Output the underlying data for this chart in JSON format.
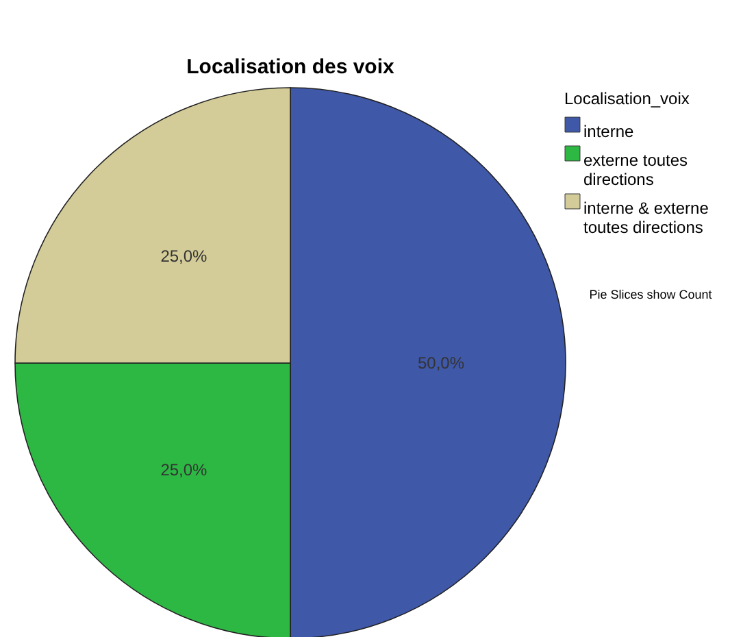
{
  "chart_data": {
    "type": "pie",
    "title": "Localisation des voix",
    "legend_title": "Localisation_voix",
    "legend": "top right",
    "categories": [
      "interne",
      "externe toutes directions",
      "interne & externe toutes directions"
    ],
    "values": [
      50,
      25,
      25
    ],
    "colors": [
      "#3f58a8",
      "#2db844",
      "#d3cc98"
    ],
    "value_labels": [
      "50,0%",
      "25,0%",
      "25,0%"
    ],
    "annotations": [
      "Pie Slices show Count"
    ]
  }
}
